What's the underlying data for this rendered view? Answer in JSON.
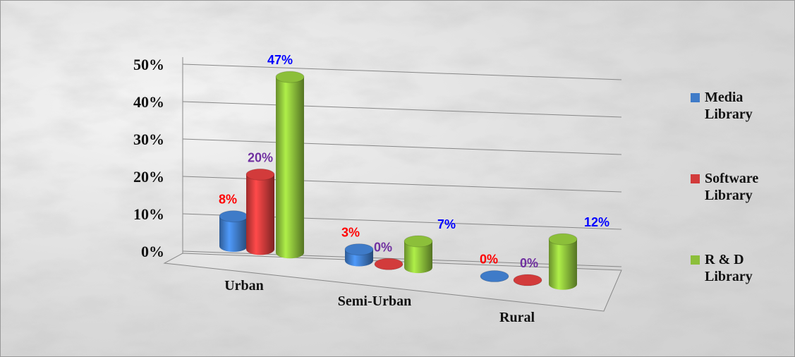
{
  "chart_data": {
    "type": "bar3d",
    "categories": [
      "Urban",
      "Semi-Urban",
      "Rural"
    ],
    "series": [
      {
        "name": "Media Library",
        "color": "#3f7bc8",
        "label_color": "#ff0000",
        "values": [
          8,
          3,
          0
        ],
        "value_labels": [
          "8%",
          "3%",
          "0%"
        ]
      },
      {
        "name": "Software Library",
        "color": "#d23b3b",
        "label_color": "#7030a0",
        "values": [
          20,
          0,
          0
        ],
        "value_labels": [
          "20%",
          "0%",
          "0%"
        ]
      },
      {
        "name": "R & D Library",
        "color": "#8cbf3a",
        "label_color": "#0000ff",
        "values": [
          47,
          7,
          12
        ],
        "value_labels": [
          "47%",
          "7%",
          "12%"
        ]
      }
    ],
    "ylim": [
      0,
      50
    ],
    "yticks": [
      {
        "value": 0,
        "label": "0%"
      },
      {
        "value": 10,
        "label": "10%"
      },
      {
        "value": 20,
        "label": "20%"
      },
      {
        "value": 30,
        "label": "30%"
      },
      {
        "value": 40,
        "label": "40%"
      },
      {
        "value": 50,
        "label": "50%"
      }
    ],
    "grid": true,
    "legend": "right"
  }
}
